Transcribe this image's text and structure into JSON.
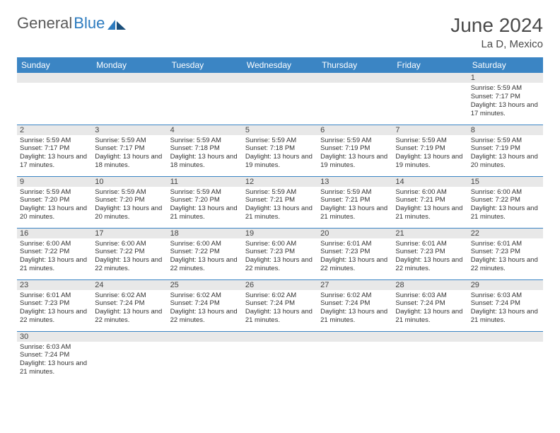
{
  "logo": {
    "part1": "General",
    "part2": "Blue"
  },
  "title": {
    "month": "June 2024",
    "location": "La D, Mexico"
  },
  "colors": {
    "header_bg": "#3b85c4",
    "header_text": "#ffffff",
    "daynum_bg": "#e8e8e8",
    "cell_border": "#3b85c4",
    "text": "#333333",
    "logo_gray": "#5a5a5a",
    "logo_blue": "#2d7bbf"
  },
  "layout": {
    "cols": 7,
    "rows": 6,
    "cell_font_size": 9.5
  },
  "weekdays": [
    "Sunday",
    "Monday",
    "Tuesday",
    "Wednesday",
    "Thursday",
    "Friday",
    "Saturday"
  ],
  "weeks": [
    [
      {
        "empty": true
      },
      {
        "empty": true
      },
      {
        "empty": true
      },
      {
        "empty": true
      },
      {
        "empty": true
      },
      {
        "empty": true
      },
      {
        "n": "1",
        "sunrise": "5:59 AM",
        "sunset": "7:17 PM",
        "daylight": "13 hours and 17 minutes."
      }
    ],
    [
      {
        "n": "2",
        "sunrise": "5:59 AM",
        "sunset": "7:17 PM",
        "daylight": "13 hours and 17 minutes."
      },
      {
        "n": "3",
        "sunrise": "5:59 AM",
        "sunset": "7:17 PM",
        "daylight": "13 hours and 18 minutes."
      },
      {
        "n": "4",
        "sunrise": "5:59 AM",
        "sunset": "7:18 PM",
        "daylight": "13 hours and 18 minutes."
      },
      {
        "n": "5",
        "sunrise": "5:59 AM",
        "sunset": "7:18 PM",
        "daylight": "13 hours and 19 minutes."
      },
      {
        "n": "6",
        "sunrise": "5:59 AM",
        "sunset": "7:19 PM",
        "daylight": "13 hours and 19 minutes."
      },
      {
        "n": "7",
        "sunrise": "5:59 AM",
        "sunset": "7:19 PM",
        "daylight": "13 hours and 19 minutes."
      },
      {
        "n": "8",
        "sunrise": "5:59 AM",
        "sunset": "7:19 PM",
        "daylight": "13 hours and 20 minutes."
      }
    ],
    [
      {
        "n": "9",
        "sunrise": "5:59 AM",
        "sunset": "7:20 PM",
        "daylight": "13 hours and 20 minutes."
      },
      {
        "n": "10",
        "sunrise": "5:59 AM",
        "sunset": "7:20 PM",
        "daylight": "13 hours and 20 minutes."
      },
      {
        "n": "11",
        "sunrise": "5:59 AM",
        "sunset": "7:20 PM",
        "daylight": "13 hours and 21 minutes."
      },
      {
        "n": "12",
        "sunrise": "5:59 AM",
        "sunset": "7:21 PM",
        "daylight": "13 hours and 21 minutes."
      },
      {
        "n": "13",
        "sunrise": "5:59 AM",
        "sunset": "7:21 PM",
        "daylight": "13 hours and 21 minutes."
      },
      {
        "n": "14",
        "sunrise": "6:00 AM",
        "sunset": "7:21 PM",
        "daylight": "13 hours and 21 minutes."
      },
      {
        "n": "15",
        "sunrise": "6:00 AM",
        "sunset": "7:22 PM",
        "daylight": "13 hours and 21 minutes."
      }
    ],
    [
      {
        "n": "16",
        "sunrise": "6:00 AM",
        "sunset": "7:22 PM",
        "daylight": "13 hours and 21 minutes."
      },
      {
        "n": "17",
        "sunrise": "6:00 AM",
        "sunset": "7:22 PM",
        "daylight": "13 hours and 22 minutes."
      },
      {
        "n": "18",
        "sunrise": "6:00 AM",
        "sunset": "7:22 PM",
        "daylight": "13 hours and 22 minutes."
      },
      {
        "n": "19",
        "sunrise": "6:00 AM",
        "sunset": "7:23 PM",
        "daylight": "13 hours and 22 minutes."
      },
      {
        "n": "20",
        "sunrise": "6:01 AM",
        "sunset": "7:23 PM",
        "daylight": "13 hours and 22 minutes."
      },
      {
        "n": "21",
        "sunrise": "6:01 AM",
        "sunset": "7:23 PM",
        "daylight": "13 hours and 22 minutes."
      },
      {
        "n": "22",
        "sunrise": "6:01 AM",
        "sunset": "7:23 PM",
        "daylight": "13 hours and 22 minutes."
      }
    ],
    [
      {
        "n": "23",
        "sunrise": "6:01 AM",
        "sunset": "7:23 PM",
        "daylight": "13 hours and 22 minutes."
      },
      {
        "n": "24",
        "sunrise": "6:02 AM",
        "sunset": "7:24 PM",
        "daylight": "13 hours and 22 minutes."
      },
      {
        "n": "25",
        "sunrise": "6:02 AM",
        "sunset": "7:24 PM",
        "daylight": "13 hours and 22 minutes."
      },
      {
        "n": "26",
        "sunrise": "6:02 AM",
        "sunset": "7:24 PM",
        "daylight": "13 hours and 21 minutes."
      },
      {
        "n": "27",
        "sunrise": "6:02 AM",
        "sunset": "7:24 PM",
        "daylight": "13 hours and 21 minutes."
      },
      {
        "n": "28",
        "sunrise": "6:03 AM",
        "sunset": "7:24 PM",
        "daylight": "13 hours and 21 minutes."
      },
      {
        "n": "29",
        "sunrise": "6:03 AM",
        "sunset": "7:24 PM",
        "daylight": "13 hours and 21 minutes."
      }
    ],
    [
      {
        "n": "30",
        "sunrise": "6:03 AM",
        "sunset": "7:24 PM",
        "daylight": "13 hours and 21 minutes."
      },
      {
        "empty": true
      },
      {
        "empty": true
      },
      {
        "empty": true
      },
      {
        "empty": true
      },
      {
        "empty": true
      },
      {
        "empty": true
      }
    ]
  ],
  "labels": {
    "sunrise": "Sunrise:",
    "sunset": "Sunset:",
    "daylight": "Daylight:"
  }
}
